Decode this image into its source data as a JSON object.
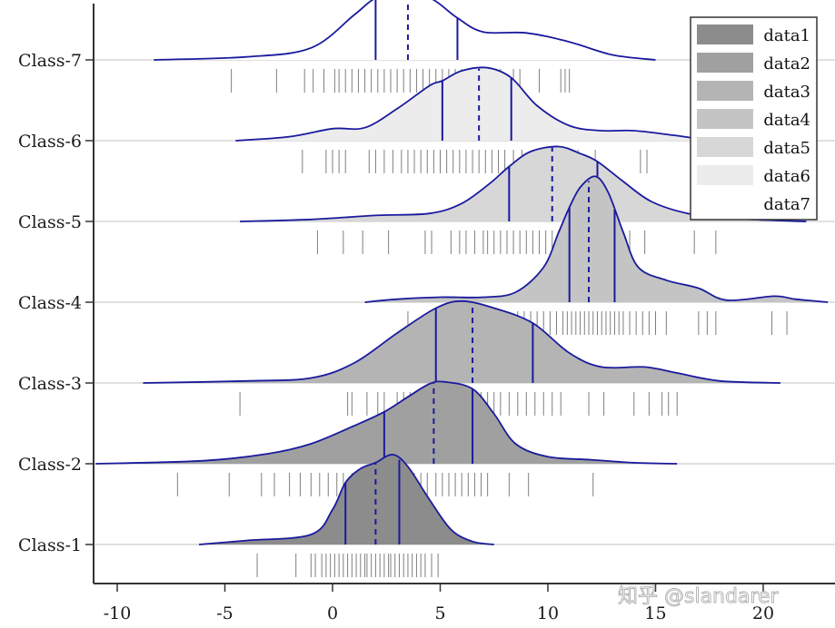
{
  "chart_data": {
    "type": "ridgeline",
    "title": "",
    "xlabel": "",
    "ylabel": "",
    "xlim": [
      -11,
      23
    ],
    "xticks": [
      -10,
      -5,
      0,
      5,
      10,
      15,
      20
    ],
    "xtick_labels": [
      "-10",
      "-5",
      "0",
      "5",
      "10",
      "15",
      "20"
    ],
    "categories": [
      "Class-1",
      "Class-2",
      "Class-3",
      "Class-4",
      "Class-5",
      "Class-6",
      "Class-7"
    ],
    "grid": "horizontal baselines",
    "legend_position": "upper right",
    "line_color": "#1a1a9e",
    "series": [
      {
        "name": "Class-1",
        "legend": "data1",
        "fill": "#8c8c8c",
        "range": [
          -6.2,
          7.5
        ],
        "peak_x": 2.8,
        "q1": 0.6,
        "median": 2.0,
        "q3": 3.1,
        "curve": [
          [
            -6.2,
            0.0
          ],
          [
            -4,
            0.04
          ],
          [
            -1,
            0.1
          ],
          [
            0,
            0.35
          ],
          [
            0.6,
            0.62
          ],
          [
            1.3,
            0.76
          ],
          [
            2,
            0.82
          ],
          [
            2.8,
            0.9
          ],
          [
            3.5,
            0.78
          ],
          [
            4.5,
            0.45
          ],
          [
            5.5,
            0.15
          ],
          [
            6.5,
            0.03
          ],
          [
            7.5,
            0.0
          ]
        ],
        "rug": [
          -3.5,
          -1.7,
          -1.0,
          -0.8,
          -0.5,
          -0.3,
          -0.1,
          0.1,
          0.3,
          0.5,
          0.7,
          0.9,
          1.1,
          1.3,
          1.5,
          1.6,
          1.8,
          2.0,
          2.2,
          2.4,
          2.6,
          2.7,
          2.9,
          3.1,
          3.3,
          3.5,
          3.7,
          3.9,
          4.1,
          4.3,
          4.6,
          4.9
        ]
      },
      {
        "name": "Class-2",
        "legend": "data2",
        "fill": "#a0a0a0",
        "range": [
          -11,
          16
        ],
        "peak_x": 5.2,
        "q1": 2.4,
        "median": 4.7,
        "q3": 6.5,
        "curve": [
          [
            -11,
            0.0
          ],
          [
            -6,
            0.03
          ],
          [
            -3,
            0.1
          ],
          [
            -1,
            0.2
          ],
          [
            1,
            0.38
          ],
          [
            2.4,
            0.52
          ],
          [
            3.5,
            0.67
          ],
          [
            4.5,
            0.8
          ],
          [
            5.2,
            0.82
          ],
          [
            6.5,
            0.75
          ],
          [
            7.5,
            0.5
          ],
          [
            8.5,
            0.2
          ],
          [
            10,
            0.07
          ],
          [
            12,
            0.04
          ],
          [
            14,
            0.01
          ],
          [
            16,
            0.0
          ]
        ],
        "rug": [
          -7.2,
          -4.8,
          -3.3,
          -2.7,
          -2.0,
          -1.5,
          -1.0,
          -0.6,
          -0.2,
          0.2,
          0.5,
          0.9,
          1.3,
          1.7,
          2.0,
          2.4,
          2.8,
          3.1,
          3.5,
          3.8,
          4.1,
          4.4,
          4.8,
          5.1,
          5.4,
          5.7,
          6.0,
          6.3,
          6.6,
          6.9,
          7.2,
          8.2,
          9.1,
          12.1
        ]
      },
      {
        "name": "Class-3",
        "legend": "data3",
        "fill": "#b4b4b4",
        "range": [
          -8.8,
          20.8
        ],
        "peak_x": 6,
        "q1": 4.8,
        "median": 6.5,
        "q3": 9.3,
        "curve": [
          [
            -8.8,
            0.0
          ],
          [
            -4,
            0.02
          ],
          [
            -1,
            0.05
          ],
          [
            1,
            0.2
          ],
          [
            3,
            0.5
          ],
          [
            4.8,
            0.75
          ],
          [
            6,
            0.82
          ],
          [
            7.5,
            0.75
          ],
          [
            9.3,
            0.6
          ],
          [
            11,
            0.3
          ],
          [
            12.5,
            0.16
          ],
          [
            14.5,
            0.16
          ],
          [
            16,
            0.1
          ],
          [
            18,
            0.02
          ],
          [
            20.8,
            0.0
          ]
        ],
        "rug": [
          -4.3,
          0.7,
          0.9,
          1.6,
          2.1,
          2.4,
          3.0,
          3.3,
          3.6,
          3.9,
          4.2,
          4.5,
          4.8,
          5.1,
          5.4,
          5.7,
          6.0,
          6.3,
          6.6,
          6.9,
          7.2,
          7.5,
          7.8,
          8.2,
          8.6,
          9.0,
          9.4,
          9.8,
          10.2,
          10.6,
          11.9,
          12.6,
          14.0,
          14.7,
          15.3,
          15.6,
          16.0
        ]
      },
      {
        "name": "Class-4",
        "legend": "data4",
        "fill": "#c4c4c4",
        "range": [
          1.5,
          23
        ],
        "peak_x": 12.2,
        "q1": 11.0,
        "median": 11.9,
        "q3": 13.1,
        "curve": [
          [
            1.5,
            0.0
          ],
          [
            3,
            0.03
          ],
          [
            5,
            0.05
          ],
          [
            7,
            0.05
          ],
          [
            8.5,
            0.1
          ],
          [
            9.8,
            0.35
          ],
          [
            10.5,
            0.7
          ],
          [
            11,
            0.95
          ],
          [
            11.5,
            1.15
          ],
          [
            12.2,
            1.26
          ],
          [
            12.8,
            1.1
          ],
          [
            13.5,
            0.7
          ],
          [
            14.2,
            0.35
          ],
          [
            15.5,
            0.22
          ],
          [
            17,
            0.14
          ],
          [
            18.3,
            0.02
          ],
          [
            20.5,
            0.06
          ],
          [
            21.5,
            0.03
          ],
          [
            23,
            0.0
          ]
        ],
        "rug": [
          3.5,
          5.4,
          6.0,
          7.3,
          8.6,
          8.9,
          9.2,
          9.5,
          9.8,
          10.1,
          10.4,
          10.7,
          10.9,
          11.1,
          11.3,
          11.5,
          11.7,
          11.9,
          12.1,
          12.3,
          12.5,
          12.7,
          12.9,
          13.1,
          13.3,
          13.5,
          13.8,
          14.1,
          14.4,
          14.7,
          15.0,
          15.5,
          17.0,
          17.4,
          17.8,
          20.4,
          21.1
        ]
      },
      {
        "name": "Class-5",
        "legend": "data5",
        "fill": "#d7d7d7",
        "range": [
          -4.3,
          22
        ],
        "peak_x": 10.5,
        "q1": 8.2,
        "median": 10.2,
        "q3": 12.3,
        "curve": [
          [
            -4.3,
            0.0
          ],
          [
            -1,
            0.02
          ],
          [
            2,
            0.06
          ],
          [
            4.5,
            0.08
          ],
          [
            6,
            0.18
          ],
          [
            7.3,
            0.38
          ],
          [
            8.2,
            0.55
          ],
          [
            9.2,
            0.7
          ],
          [
            10.5,
            0.75
          ],
          [
            11.5,
            0.68
          ],
          [
            12.3,
            0.6
          ],
          [
            13.5,
            0.4
          ],
          [
            14.8,
            0.2
          ],
          [
            16.5,
            0.08
          ],
          [
            18.5,
            0.03
          ],
          [
            22,
            0.0
          ]
        ],
        "rug": [
          -0.7,
          0.5,
          1.4,
          2.6,
          4.3,
          4.6,
          5.5,
          5.9,
          6.2,
          6.6,
          7.0,
          7.2,
          7.5,
          7.8,
          8.1,
          8.4,
          8.7,
          9.0,
          9.3,
          9.6,
          9.9,
          10.2,
          10.5,
          10.8,
          11.1,
          11.4,
          11.7,
          12.0,
          12.4,
          12.8,
          13.3,
          13.8,
          14.5,
          16.8,
          17.8
        ]
      },
      {
        "name": "Class-6",
        "legend": "data6",
        "fill": "#ececec",
        "range": [
          -4.5,
          22.5
        ],
        "peak_x": 7.2,
        "q1": 5.1,
        "median": 6.8,
        "q3": 8.3,
        "curve": [
          [
            -4.5,
            0.0
          ],
          [
            -2,
            0.04
          ],
          [
            0,
            0.12
          ],
          [
            1.5,
            0.13
          ],
          [
            3,
            0.32
          ],
          [
            4.5,
            0.55
          ],
          [
            5.1,
            0.6
          ],
          [
            6,
            0.7
          ],
          [
            7.2,
            0.73
          ],
          [
            8.3,
            0.63
          ],
          [
            9.5,
            0.35
          ],
          [
            11,
            0.15
          ],
          [
            12.5,
            0.1
          ],
          [
            14,
            0.1
          ],
          [
            16,
            0.05
          ],
          [
            18,
            0.0
          ],
          [
            22.5,
            0.0
          ]
        ],
        "rug": [
          -1.4,
          -0.3,
          0.0,
          0.3,
          0.6,
          1.7,
          2.0,
          2.4,
          2.8,
          3.2,
          3.5,
          3.8,
          4.1,
          4.4,
          4.7,
          5.0,
          5.3,
          5.6,
          5.9,
          6.2,
          6.5,
          6.8,
          7.1,
          7.4,
          7.7,
          8.0,
          8.4,
          8.8,
          9.3,
          9.8,
          10.4,
          11.4,
          12.2,
          14.3,
          14.6
        ]
      },
      {
        "name": "Class-7",
        "legend": "data7",
        "fill": "#ffffff",
        "range": [
          -8.3,
          15
        ],
        "peak_x": 3.4,
        "q1": 2.0,
        "median": 3.5,
        "q3": 5.8,
        "curve": [
          [
            -8.3,
            0.0
          ],
          [
            -4,
            0.03
          ],
          [
            -1,
            0.12
          ],
          [
            1,
            0.45
          ],
          [
            2,
            0.62
          ],
          [
            3.4,
            0.72
          ],
          [
            4.7,
            0.6
          ],
          [
            5.8,
            0.42
          ],
          [
            7,
            0.28
          ],
          [
            9,
            0.27
          ],
          [
            11,
            0.18
          ],
          [
            13,
            0.05
          ],
          [
            15,
            0.0
          ]
        ],
        "rug": [
          -4.7,
          -2.6,
          -1.3,
          -0.9,
          -0.4,
          0.1,
          0.3,
          0.6,
          0.9,
          1.2,
          1.5,
          1.8,
          2.1,
          2.4,
          2.7,
          3.0,
          3.3,
          3.6,
          3.9,
          4.2,
          4.5,
          4.8,
          5.1,
          5.4,
          5.7,
          6.0,
          7.2,
          7.5,
          7.8,
          8.4,
          8.7,
          9.6,
          10.6,
          10.8,
          11.0
        ]
      }
    ]
  },
  "axis": {
    "y_labels": [
      "Class-7",
      "Class-6",
      "Class-5",
      "Class-4",
      "Class-3",
      "Class-2",
      "Class-1"
    ],
    "x_labels": [
      "-10",
      "-5",
      "0",
      "5",
      "10",
      "15",
      "20"
    ]
  },
  "legend": {
    "items": [
      {
        "label": "data1",
        "color": "#8c8c8c"
      },
      {
        "label": "data2",
        "color": "#a0a0a0"
      },
      {
        "label": "data3",
        "color": "#b4b4b4"
      },
      {
        "label": "data4",
        "color": "#c4c4c4"
      },
      {
        "label": "data5",
        "color": "#d7d7d7"
      },
      {
        "label": "data6",
        "color": "#ececec"
      },
      {
        "label": "data7",
        "color": "#ffffff"
      }
    ]
  },
  "watermark": "知乎 @slandarer"
}
